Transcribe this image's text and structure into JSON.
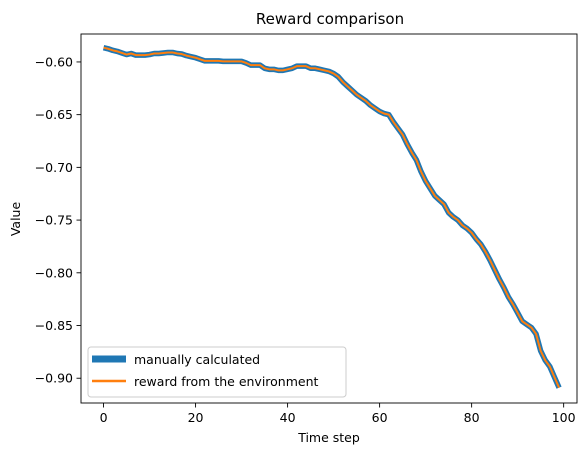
{
  "chart_data": {
    "type": "line",
    "title": "Reward comparison",
    "xlabel": "Time step",
    "ylabel": "Value",
    "xlim": [
      -4.9,
      102.9
    ],
    "ylim": [
      -0.9235,
      -0.5735
    ],
    "xticks": [
      0,
      20,
      40,
      60,
      80,
      100
    ],
    "xtick_labels": [
      "0",
      "20",
      "40",
      "60",
      "80",
      "100"
    ],
    "yticks": [
      -0.6,
      -0.65,
      -0.7,
      -0.75,
      -0.8,
      -0.85,
      -0.9
    ],
    "ytick_labels": [
      "−0.60",
      "−0.65",
      "−0.70",
      "−0.75",
      "−0.80",
      "−0.85",
      "−0.90"
    ],
    "grid": false,
    "legend_position": "lower-left",
    "series": [
      {
        "name": "manually calculated",
        "color": "#1f77b4",
        "values": [
          -0.5865,
          -0.5875,
          -0.589,
          -0.59,
          -0.5915,
          -0.593,
          -0.592,
          -0.5935,
          -0.5935,
          -0.5935,
          -0.593,
          -0.592,
          -0.592,
          -0.5915,
          -0.591,
          -0.591,
          -0.592,
          -0.5925,
          -0.594,
          -0.595,
          -0.596,
          -0.5975,
          -0.599,
          -0.599,
          -0.599,
          -0.599,
          -0.5995,
          -0.5995,
          -0.5995,
          -0.5995,
          -0.5995,
          -0.601,
          -0.603,
          -0.603,
          -0.603,
          -0.606,
          -0.607,
          -0.607,
          -0.608,
          -0.608,
          -0.607,
          -0.606,
          -0.604,
          -0.604,
          -0.604,
          -0.606,
          -0.606,
          -0.607,
          -0.608,
          -0.609,
          -0.611,
          -0.614,
          -0.619,
          -0.623,
          -0.627,
          -0.631,
          -0.634,
          -0.637,
          -0.641,
          -0.644,
          -0.647,
          -0.649,
          -0.65,
          -0.657,
          -0.663,
          -0.669,
          -0.678,
          -0.686,
          -0.693,
          -0.704,
          -0.713,
          -0.72,
          -0.727,
          -0.731,
          -0.735,
          -0.743,
          -0.747,
          -0.75,
          -0.755,
          -0.758,
          -0.762,
          -0.768,
          -0.773,
          -0.78,
          -0.788,
          -0.797,
          -0.806,
          -0.814,
          -0.823,
          -0.83,
          -0.838,
          -0.846,
          -0.849,
          -0.852,
          -0.858,
          -0.874,
          -0.883,
          -0.889,
          -0.899,
          -0.909
        ]
      },
      {
        "name": "reward from the environment",
        "color": "#ff7f0e",
        "values": [
          -0.5865,
          -0.5875,
          -0.589,
          -0.59,
          -0.5915,
          -0.593,
          -0.592,
          -0.5935,
          -0.5935,
          -0.5935,
          -0.593,
          -0.592,
          -0.592,
          -0.5915,
          -0.591,
          -0.591,
          -0.592,
          -0.5925,
          -0.594,
          -0.595,
          -0.596,
          -0.5975,
          -0.599,
          -0.599,
          -0.599,
          -0.599,
          -0.5995,
          -0.5995,
          -0.5995,
          -0.5995,
          -0.5995,
          -0.601,
          -0.603,
          -0.603,
          -0.603,
          -0.606,
          -0.607,
          -0.607,
          -0.608,
          -0.608,
          -0.607,
          -0.606,
          -0.604,
          -0.604,
          -0.604,
          -0.606,
          -0.606,
          -0.607,
          -0.608,
          -0.609,
          -0.611,
          -0.614,
          -0.619,
          -0.623,
          -0.627,
          -0.631,
          -0.634,
          -0.637,
          -0.641,
          -0.644,
          -0.647,
          -0.649,
          -0.65,
          -0.657,
          -0.663,
          -0.669,
          -0.678,
          -0.686,
          -0.693,
          -0.704,
          -0.713,
          -0.72,
          -0.727,
          -0.731,
          -0.735,
          -0.743,
          -0.747,
          -0.75,
          -0.755,
          -0.758,
          -0.762,
          -0.768,
          -0.773,
          -0.78,
          -0.788,
          -0.797,
          -0.806,
          -0.814,
          -0.823,
          -0.83,
          -0.838,
          -0.846,
          -0.849,
          -0.852,
          -0.858,
          -0.874,
          -0.883,
          -0.889,
          -0.899,
          -0.909
        ]
      }
    ]
  }
}
